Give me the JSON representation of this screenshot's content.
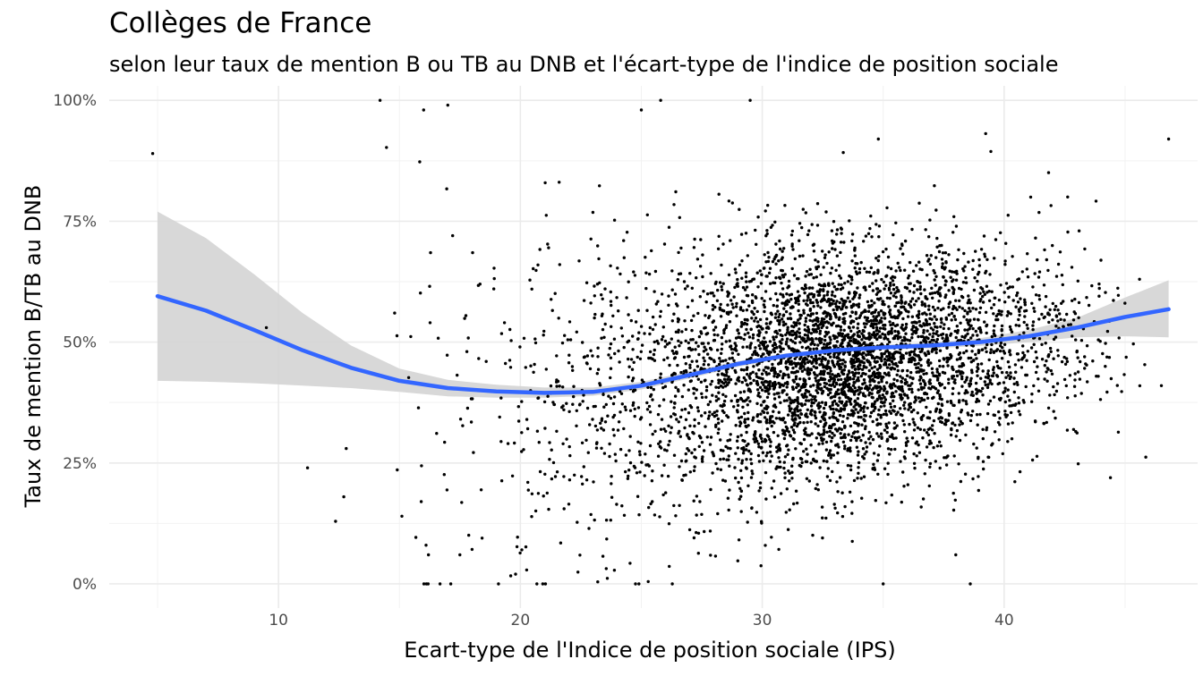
{
  "chart_data": {
    "type": "scatter",
    "title": "Collèges de France",
    "subtitle": "selon leur taux de mention B ou TB  au DNB et l'écart-type de l'indice de position sociale",
    "xlabel": "Ecart-type de l'Indice de position sociale (IPS)",
    "ylabel": "Taux de mention B/TB au DNB",
    "xlim": [
      3,
      48
    ],
    "ylim": [
      -0.05,
      1.03
    ],
    "x_ticks": [
      10,
      20,
      30,
      40
    ],
    "x_tick_labels": [
      "10",
      "20",
      "30",
      "40"
    ],
    "y_ticks": [
      0,
      0.25,
      0.5,
      0.75,
      1.0
    ],
    "y_tick_labels": [
      "0%",
      "25%",
      "50%",
      "75%",
      "100%"
    ],
    "grid": true,
    "point_color": "#000000",
    "smooth_color": "#3366FF",
    "ribbon_color": "#d4d4d4",
    "notable_points": [
      {
        "x": 4.8,
        "y": 0.89
      },
      {
        "x": 9.5,
        "y": 0.53
      },
      {
        "x": 11.2,
        "y": 0.24
      },
      {
        "x": 12.8,
        "y": 0.28
      },
      {
        "x": 12.7,
        "y": 0.18
      },
      {
        "x": 14.2,
        "y": 1.0
      },
      {
        "x": 14.8,
        "y": 0.56
      },
      {
        "x": 15.1,
        "y": 0.14
      },
      {
        "x": 15.9,
        "y": 0.17
      },
      {
        "x": 16.1,
        "y": 0.08
      },
      {
        "x": 16.2,
        "y": 0.06
      },
      {
        "x": 17.5,
        "y": 0.06
      },
      {
        "x": 19.8,
        "y": 0.02
      },
      {
        "x": 18.9,
        "y": 0.61
      },
      {
        "x": 24.9,
        "y": 0.0
      },
      {
        "x": 25.8,
        "y": 1.0
      },
      {
        "x": 29.5,
        "y": 1.0
      },
      {
        "x": 38.6,
        "y": 0.0
      },
      {
        "x": 38.0,
        "y": 0.06
      },
      {
        "x": 41.1,
        "y": 0.8
      },
      {
        "x": 46.5,
        "y": 0.41
      },
      {
        "x": 46.8,
        "y": 0.92
      },
      {
        "x": 45.6,
        "y": 0.63
      },
      {
        "x": 43.1,
        "y": 0.73
      },
      {
        "x": 17.0,
        "y": 0.99
      },
      {
        "x": 16.0,
        "y": 0.98
      },
      {
        "x": 23.5,
        "y": 0.61
      },
      {
        "x": 25.0,
        "y": 0.98
      },
      {
        "x": 34.8,
        "y": 0.92
      },
      {
        "x": 35.0,
        "y": 0.0
      }
    ],
    "cloud_clusters": [
      {
        "cx": 33.5,
        "cy": 0.46,
        "sx": 3.0,
        "sy": 0.11,
        "n": 2600
      },
      {
        "cx": 29.0,
        "cy": 0.42,
        "sx": 3.2,
        "sy": 0.15,
        "n": 900
      },
      {
        "cx": 38.5,
        "cy": 0.5,
        "sx": 2.6,
        "sy": 0.11,
        "n": 650
      },
      {
        "cx": 24.5,
        "cy": 0.38,
        "sx": 2.8,
        "sy": 0.18,
        "n": 260
      },
      {
        "cx": 19.5,
        "cy": 0.35,
        "sx": 2.5,
        "sy": 0.25,
        "n": 110
      },
      {
        "cx": 42.5,
        "cy": 0.52,
        "sx": 1.6,
        "sy": 0.1,
        "n": 90
      }
    ],
    "smooth_curve": [
      {
        "x": 5,
        "y": 0.595,
        "lo": 0.42,
        "hi": 0.77
      },
      {
        "x": 7,
        "y": 0.565,
        "lo": 0.418,
        "hi": 0.715
      },
      {
        "x": 9,
        "y": 0.525,
        "lo": 0.415,
        "hi": 0.64
      },
      {
        "x": 11,
        "y": 0.483,
        "lo": 0.41,
        "hi": 0.56
      },
      {
        "x": 13,
        "y": 0.447,
        "lo": 0.405,
        "hi": 0.493
      },
      {
        "x": 15,
        "y": 0.42,
        "lo": 0.397,
        "hi": 0.445
      },
      {
        "x": 17,
        "y": 0.405,
        "lo": 0.388,
        "hi": 0.422
      },
      {
        "x": 19,
        "y": 0.398,
        "lo": 0.385,
        "hi": 0.412
      },
      {
        "x": 21,
        "y": 0.395,
        "lo": 0.385,
        "hi": 0.406
      },
      {
        "x": 23,
        "y": 0.397,
        "lo": 0.389,
        "hi": 0.406
      },
      {
        "x": 25,
        "y": 0.41,
        "lo": 0.402,
        "hi": 0.418
      },
      {
        "x": 27,
        "y": 0.432,
        "lo": 0.425,
        "hi": 0.439
      },
      {
        "x": 29,
        "y": 0.455,
        "lo": 0.449,
        "hi": 0.461
      },
      {
        "x": 31,
        "y": 0.472,
        "lo": 0.467,
        "hi": 0.477
      },
      {
        "x": 33,
        "y": 0.483,
        "lo": 0.479,
        "hi": 0.487
      },
      {
        "x": 35,
        "y": 0.489,
        "lo": 0.485,
        "hi": 0.494
      },
      {
        "x": 37,
        "y": 0.493,
        "lo": 0.487,
        "hi": 0.499
      },
      {
        "x": 39,
        "y": 0.5,
        "lo": 0.492,
        "hi": 0.508
      },
      {
        "x": 41,
        "y": 0.512,
        "lo": 0.5,
        "hi": 0.525
      },
      {
        "x": 43,
        "y": 0.53,
        "lo": 0.51,
        "hi": 0.55
      },
      {
        "x": 45,
        "y": 0.552,
        "lo": 0.512,
        "hi": 0.592
      },
      {
        "x": 46.8,
        "y": 0.568,
        "lo": 0.51,
        "hi": 0.628
      }
    ]
  }
}
